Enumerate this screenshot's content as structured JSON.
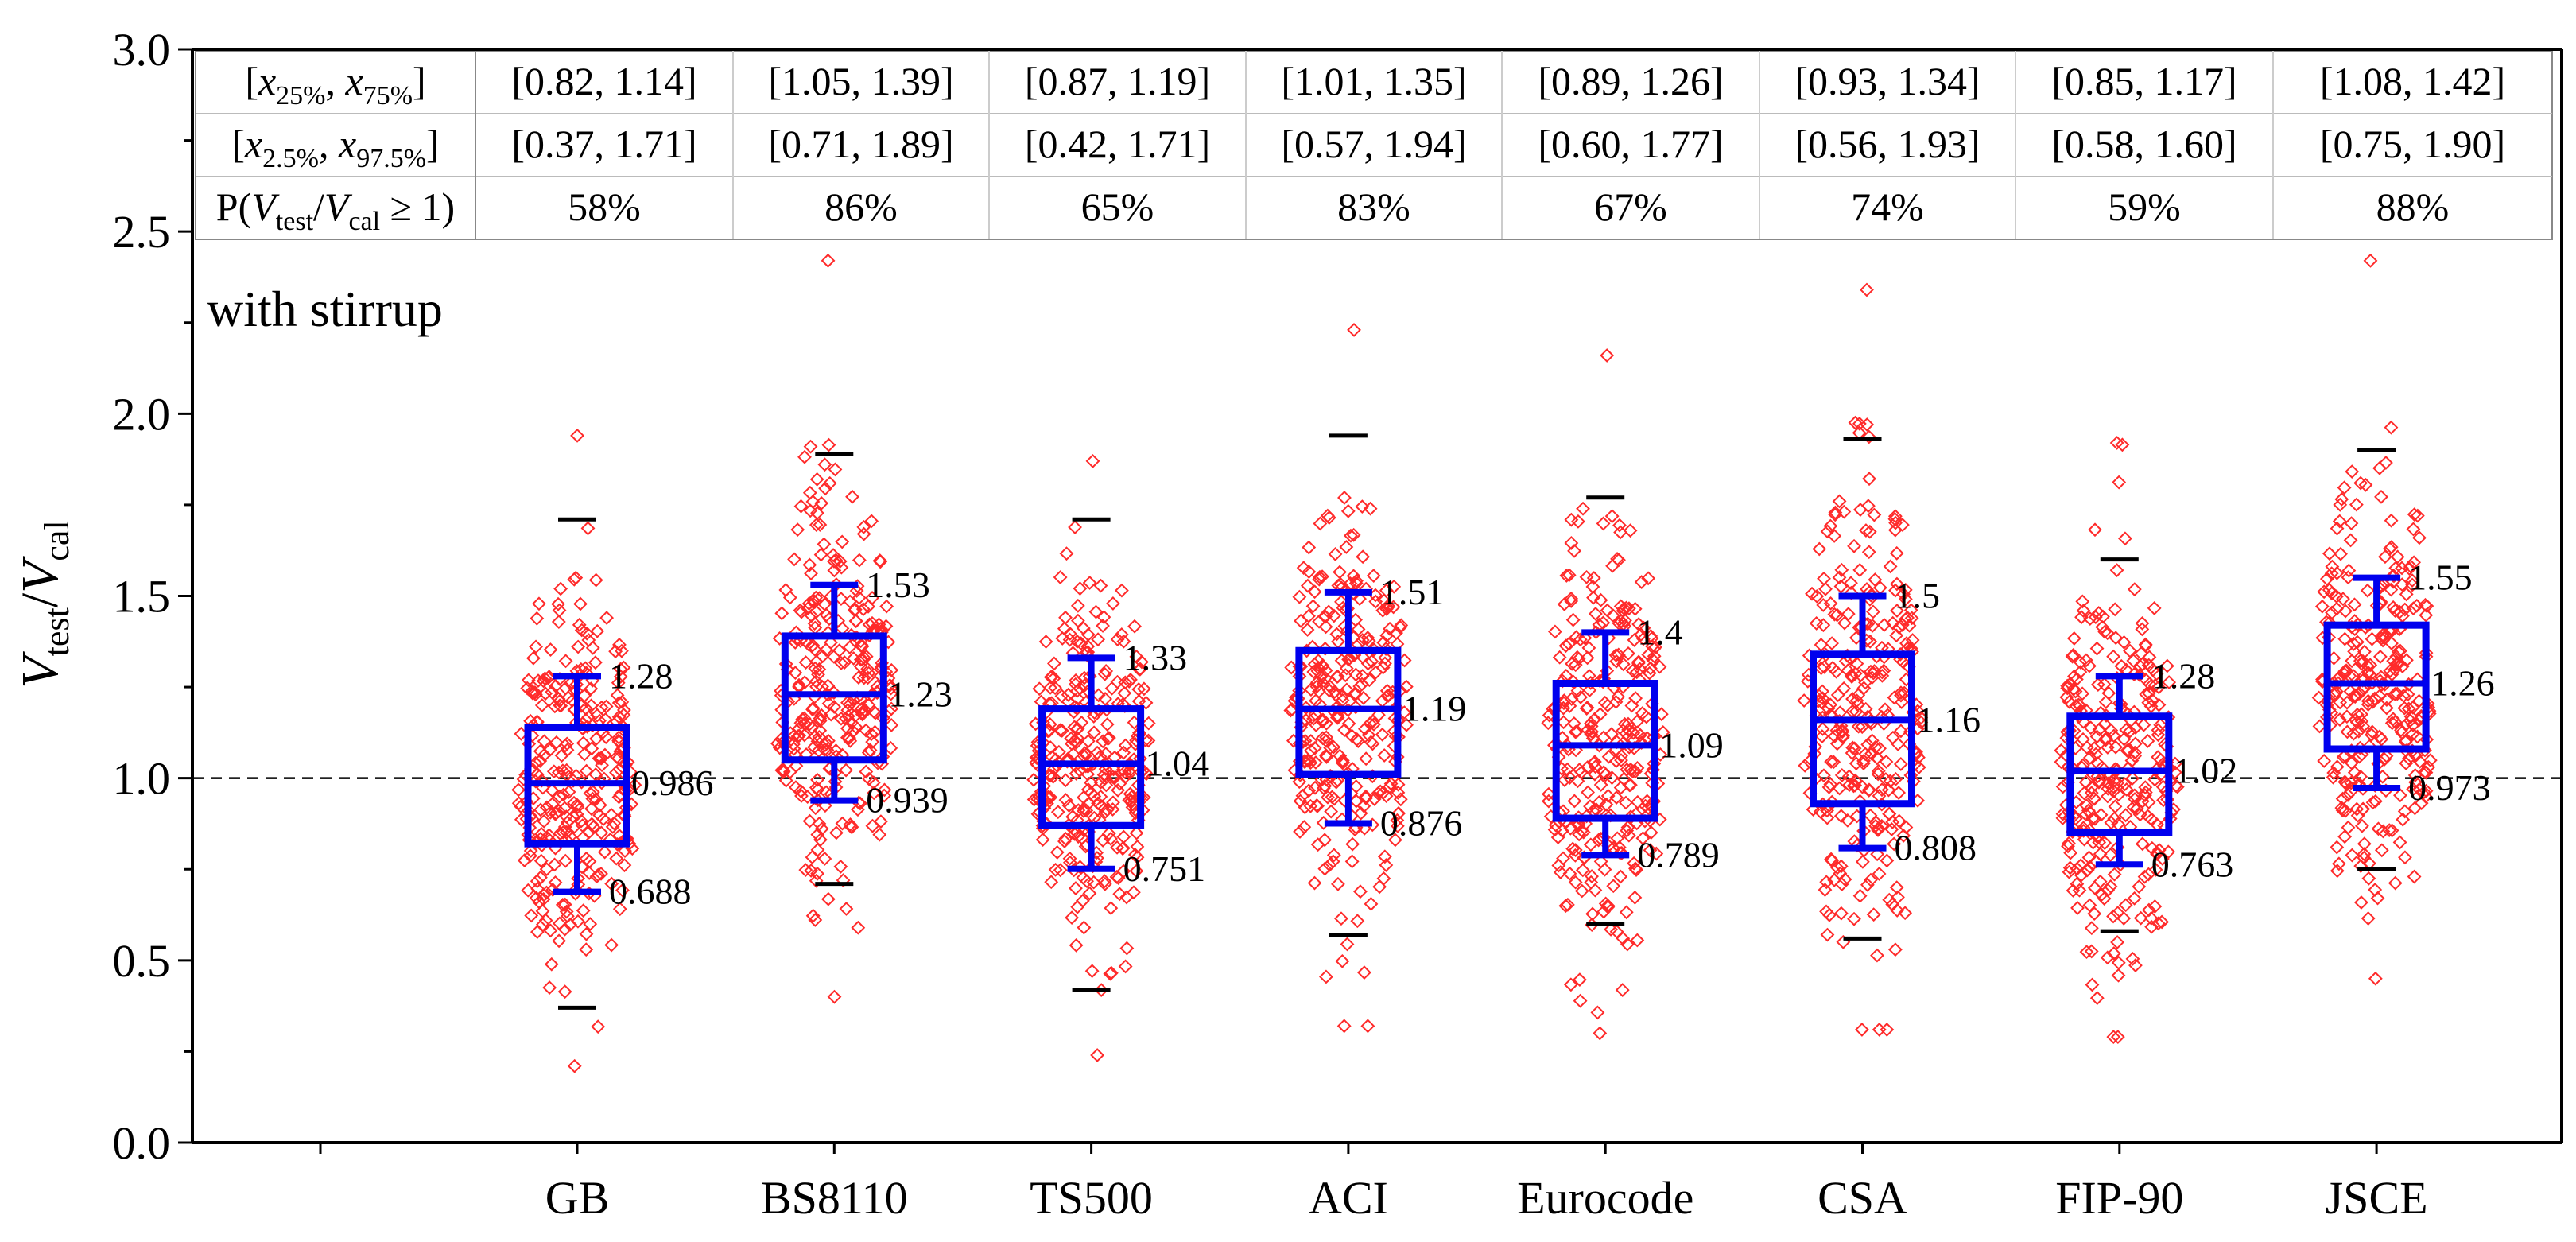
{
  "chart_data": {
    "type": "box",
    "title": "",
    "annotation": "with stirrup",
    "xlabel": "",
    "ylabel": {
      "main": "V",
      "sub1": "test",
      "slash": "/",
      "main2": "V",
      "sub2": "cal"
    },
    "ylim": [
      0,
      3.0
    ],
    "yticks": [
      {
        "v": 0.0,
        "label": "0.0"
      },
      {
        "v": 0.5,
        "label": "0.5"
      },
      {
        "v": 1.0,
        "label": "1.0"
      },
      {
        "v": 1.5,
        "label": "1.5"
      },
      {
        "v": 2.0,
        "label": "2.0"
      },
      {
        "v": 2.5,
        "label": "2.5"
      },
      {
        "v": 3.0,
        "label": "3.0"
      }
    ],
    "reference_line": 1.0,
    "categories": [
      "GB",
      "BS8110",
      "TS500",
      "ACI",
      "Eurocode",
      "CSA",
      "FIP-90",
      "JSCE"
    ],
    "table": {
      "rows": [
        {
          "header_parts": [
            {
              "t": "[",
              "s": ""
            },
            {
              "t": "x",
              "s": "italic"
            },
            {
              "t": "25%",
              "s": "sub"
            },
            {
              "t": ", ",
              "s": ""
            },
            {
              "t": "x",
              "s": "italic"
            },
            {
              "t": "75%",
              "s": "sub"
            },
            {
              "t": "]",
              "s": ""
            }
          ],
          "values": [
            "[0.82, 1.14]",
            "[1.05, 1.39]",
            "[0.87, 1.19]",
            "[1.01, 1.35]",
            "[0.89, 1.26]",
            "[0.93, 1.34]",
            "[0.85, 1.17]",
            "[1.08, 1.42]"
          ]
        },
        {
          "header_parts": [
            {
              "t": "[",
              "s": ""
            },
            {
              "t": "x",
              "s": "italic"
            },
            {
              "t": "2.5%",
              "s": "sub"
            },
            {
              "t": ", ",
              "s": ""
            },
            {
              "t": "x",
              "s": "italic"
            },
            {
              "t": "97.5%",
              "s": "sub"
            },
            {
              "t": "]",
              "s": ""
            }
          ],
          "values": [
            "[0.37, 1.71]",
            "[0.71, 1.89]",
            "[0.42, 1.71]",
            "[0.57, 1.94]",
            "[0.60, 1.77]",
            "[0.56, 1.93]",
            "[0.58, 1.60]",
            "[0.75, 1.90]"
          ]
        },
        {
          "header_parts": [
            {
              "t": "P(",
              "s": ""
            },
            {
              "t": "V",
              "s": "italic"
            },
            {
              "t": "test",
              "s": "sub"
            },
            {
              "t": "/",
              "s": ""
            },
            {
              "t": "V",
              "s": "italic"
            },
            {
              "t": "cal",
              "s": "sub"
            },
            {
              "t": " ≥ 1)",
              "s": ""
            }
          ],
          "values": [
            "58%",
            "86%",
            "65%",
            "83%",
            "67%",
            "74%",
            "59%",
            "88%"
          ]
        }
      ]
    },
    "boxes": [
      {
        "name": "GB",
        "q1": 0.82,
        "median": 0.986,
        "q3": 1.14,
        "whisker_low": 0.688,
        "whisker_high": 1.28,
        "p2_5": 0.37,
        "p97_5": 1.71,
        "min": 0.21,
        "max": 1.94,
        "labels": {
          "high": "1.28",
          "median": "0.986",
          "low": "0.688"
        }
      },
      {
        "name": "BS8110",
        "q1": 1.05,
        "median": 1.23,
        "q3": 1.39,
        "whisker_low": 0.939,
        "whisker_high": 1.53,
        "p2_5": 0.71,
        "p97_5": 1.89,
        "min": 0.4,
        "max": 2.42,
        "labels": {
          "high": "1.53",
          "median": "1.23",
          "low": "0.939"
        }
      },
      {
        "name": "TS500",
        "q1": 0.87,
        "median": 1.04,
        "q3": 1.19,
        "whisker_low": 0.751,
        "whisker_high": 1.33,
        "p2_5": 0.42,
        "p97_5": 1.71,
        "min": 0.24,
        "max": 1.87,
        "labels": {
          "high": "1.33",
          "median": "1.04",
          "low": "0.751"
        }
      },
      {
        "name": "ACI",
        "q1": 1.01,
        "median": 1.19,
        "q3": 1.35,
        "whisker_low": 0.876,
        "whisker_high": 1.51,
        "p2_5": 0.57,
        "p97_5": 1.94,
        "min": 0.32,
        "max": 2.23,
        "labels": {
          "high": "1.51",
          "median": "1.19",
          "low": "0.876"
        }
      },
      {
        "name": "Eurocode",
        "q1": 0.89,
        "median": 1.09,
        "q3": 1.26,
        "whisker_low": 0.789,
        "whisker_high": 1.4,
        "p2_5": 0.6,
        "p97_5": 1.77,
        "min": 0.3,
        "max": 2.16,
        "labels": {
          "high": "1.4",
          "median": "1.09",
          "low": "0.789"
        }
      },
      {
        "name": "CSA",
        "q1": 0.93,
        "median": 1.16,
        "q3": 1.34,
        "whisker_low": 0.808,
        "whisker_high": 1.5,
        "p2_5": 0.56,
        "p97_5": 1.93,
        "min": 0.31,
        "max": 2.34,
        "labels": {
          "high": "1.5",
          "median": "1.16",
          "low": "0.808"
        }
      },
      {
        "name": "FIP-90",
        "q1": 0.85,
        "median": 1.02,
        "q3": 1.17,
        "whisker_low": 0.763,
        "whisker_high": 1.28,
        "p2_5": 0.58,
        "p97_5": 1.6,
        "min": 0.29,
        "max": 1.92,
        "labels": {
          "high": "1.28",
          "median": "1.02",
          "low": "0.763"
        }
      },
      {
        "name": "JSCE",
        "q1": 1.08,
        "median": 1.26,
        "q3": 1.42,
        "whisker_low": 0.973,
        "whisker_high": 1.55,
        "p2_5": 0.75,
        "p97_5": 1.9,
        "min": 0.45,
        "max": 2.42,
        "labels": {
          "high": "1.55",
          "median": "1.26",
          "low": "0.973"
        }
      }
    ],
    "colors": {
      "box": "#0000ee",
      "points": "#ff2a2a",
      "caps": "#000000",
      "grid": "#cccccc",
      "axis": "#000000"
    }
  }
}
